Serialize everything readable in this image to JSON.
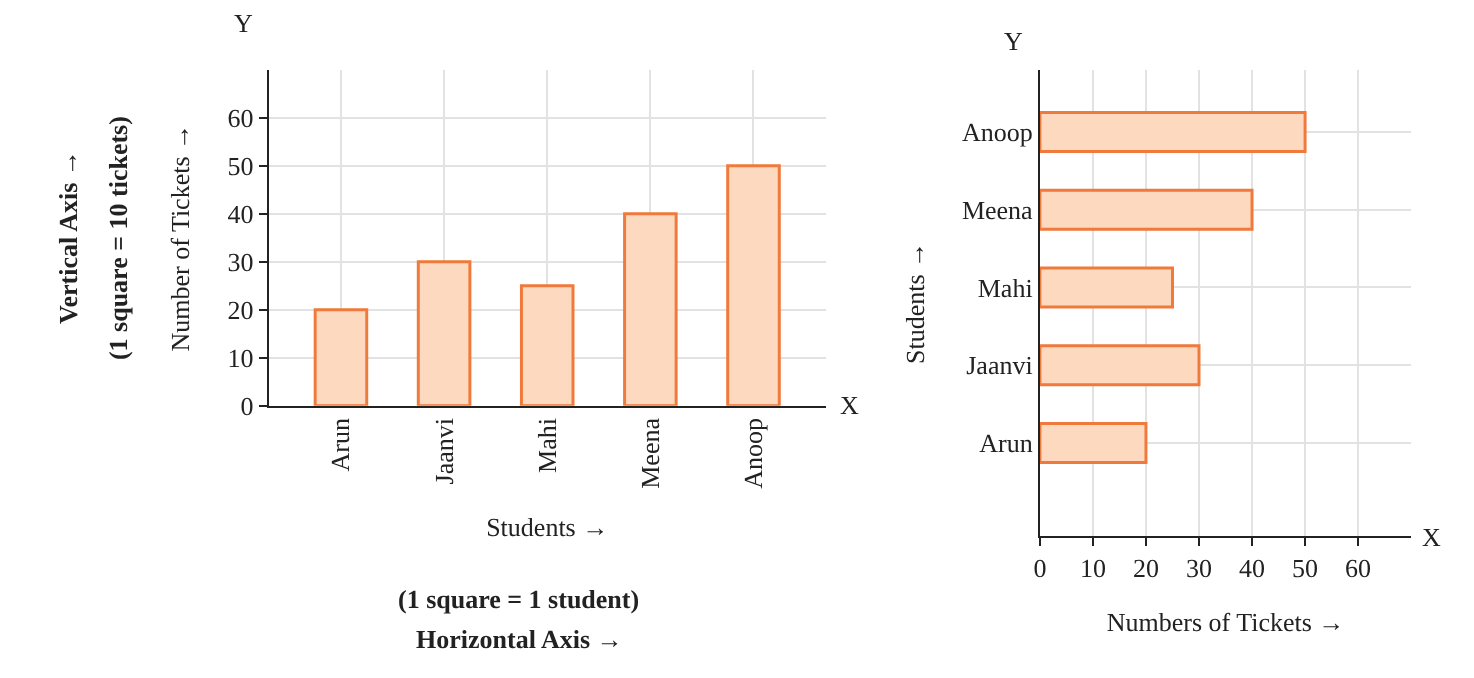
{
  "chart_data": [
    {
      "type": "bar",
      "categories": [
        "Arun",
        "Jaanvi",
        "Mahi",
        "Meena",
        "Anoop"
      ],
      "values": [
        20,
        30,
        25,
        40,
        50
      ],
      "color": "#fdd9c0",
      "xlabel": "Students →",
      "ylabel": "Number of Tickets →",
      "ylim": [
        0,
        70
      ],
      "yticks": [
        0,
        10,
        20,
        30,
        40,
        50,
        60
      ],
      "grid": true,
      "annotations": [
        "Y",
        "X",
        "(1 square = 1 student)",
        "Horizontal Axis →",
        "Vertical Axis →",
        "(1 square = 10 tickets)"
      ]
    },
    {
      "type": "bar",
      "orientation": "horizontal",
      "categories": [
        "Anoop",
        "Meena",
        "Mahi",
        "Jaanvi",
        "Arun"
      ],
      "values": [
        50,
        40,
        25,
        30,
        20
      ],
      "color": "#fdd9c0",
      "xlabel": "Numbers of Tickets →",
      "ylabel": "Students →",
      "xlim": [
        0,
        70
      ],
      "xticks": [
        0,
        10,
        20,
        30,
        40,
        50,
        60
      ],
      "grid": true,
      "annotations": [
        "Y",
        "X"
      ]
    }
  ]
}
